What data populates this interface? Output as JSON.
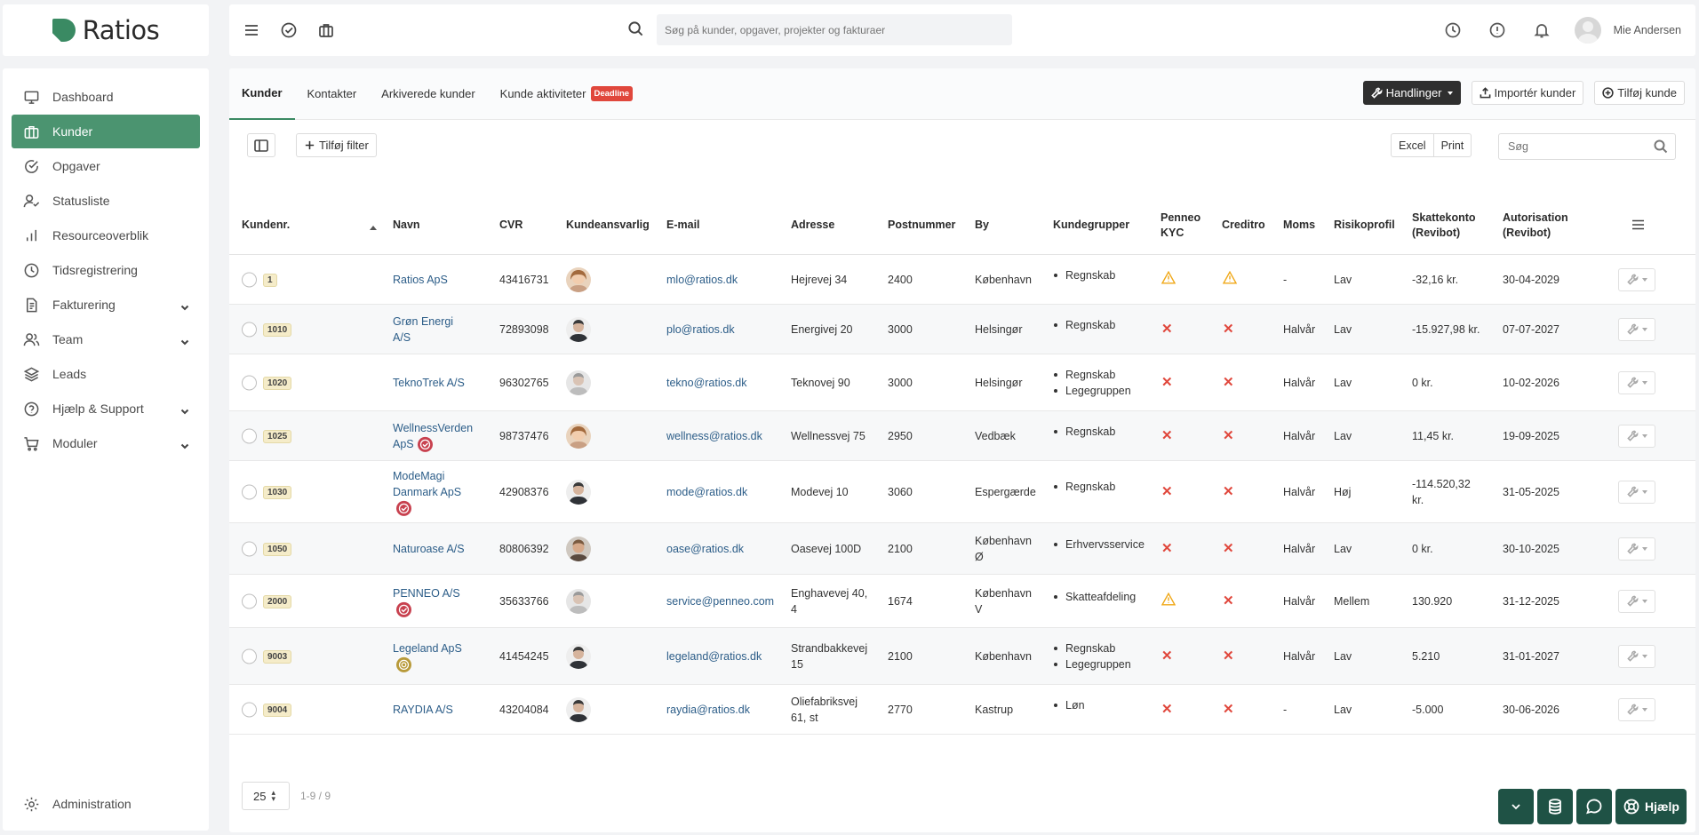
{
  "app": {
    "name": "Ratios"
  },
  "topbar": {
    "search_placeholder": "Søg på kunder, opgaver, projekter og fakturaer",
    "user_name": "Mie Andersen"
  },
  "sidebar": {
    "items": [
      {
        "label": "Dashboard",
        "icon": "monitor-icon"
      },
      {
        "label": "Kunder",
        "icon": "briefcase-icon",
        "active": true
      },
      {
        "label": "Opgaver",
        "icon": "check-circle-icon"
      },
      {
        "label": "Statusliste",
        "icon": "user-check-icon"
      },
      {
        "label": "Resourceoverblik",
        "icon": "bar-chart-icon"
      },
      {
        "label": "Tidsregistrering",
        "icon": "clock-icon"
      },
      {
        "label": "Fakturering",
        "icon": "invoice-icon",
        "expandable": true
      },
      {
        "label": "Team",
        "icon": "users-icon",
        "expandable": true
      },
      {
        "label": "Leads",
        "icon": "layers-icon"
      },
      {
        "label": "Hjælp & Support",
        "icon": "help-circle-icon",
        "expandable": true
      },
      {
        "label": "Moduler",
        "icon": "cart-icon",
        "expandable": true
      }
    ],
    "admin_label": "Administration"
  },
  "tabs": {
    "items": [
      "Kunder",
      "Kontakter",
      "Arkiverede kunder",
      "Kunde aktiviteter"
    ],
    "deadline_badge": "Deadline",
    "actions": {
      "handlinger": "Handlinger",
      "import": "Importér kunder",
      "add": "Tilføj kunde"
    }
  },
  "toolbar": {
    "add_filter": "Tilføj filter",
    "excel": "Excel",
    "print": "Print",
    "search_placeholder": "Søg"
  },
  "table": {
    "headers": {
      "kundenr": "Kundenr.",
      "navn": "Navn",
      "cvr": "CVR",
      "ansvarlig": "Kundeansvarlig",
      "email": "E-mail",
      "adresse": "Adresse",
      "postnummer": "Postnummer",
      "by": "By",
      "grupper": "Kundegrupper",
      "penneo_1": "Penneo",
      "penneo_2": "KYC",
      "creditro": "Creditro",
      "moms": "Moms",
      "risiko": "Risikoprofil",
      "skat_1": "Skattekonto",
      "skat_2": "(Revibot)",
      "auth_1": "Autorisation",
      "auth_2": "(Revibot)"
    },
    "rows": [
      {
        "nr": "1",
        "name": "Ratios ApS",
        "cvr": "43416731",
        "email": "mlo@ratios.dk",
        "address": "Hejrevej 34",
        "zip": "2400",
        "city": "København",
        "groups": [
          "Regnskab"
        ],
        "penneo": "warning",
        "creditro": "warning",
        "moms": "-",
        "risk": "Lav",
        "tax": "-32,16 kr.",
        "auth": "30-04-2029"
      },
      {
        "nr": "1010",
        "name": "Grøn Energi A/S",
        "cvr": "72893098",
        "email": "plo@ratios.dk",
        "address": "Energivej 20",
        "zip": "3000",
        "city": "Helsingør",
        "groups": [
          "Regnskab"
        ],
        "penneo": "x",
        "creditro": "x",
        "moms": "Halvår",
        "risk": "Lav",
        "tax": "-15.927,98 kr.",
        "auth": "07-07-2027"
      },
      {
        "nr": "1020",
        "name": "TeknoTrek A/S",
        "cvr": "96302765",
        "email": "tekno@ratios.dk",
        "address": "Teknovej 90",
        "zip": "3000",
        "city": "Helsingør",
        "groups": [
          "Regnskab",
          "Legegruppen"
        ],
        "penneo": "x",
        "creditro": "x",
        "moms": "Halvår",
        "risk": "Lav",
        "tax": "0 kr.",
        "auth": "10-02-2026"
      },
      {
        "nr": "1025",
        "name": "WellnessVerden ApS",
        "cvr": "98737476",
        "email": "wellness@ratios.dk",
        "address": "Wellnessvej 75",
        "zip": "2950",
        "city": "Vedbæk",
        "groups": [
          "Regnskab"
        ],
        "penneo": "x",
        "creditro": "x",
        "moms": "Halvår",
        "risk": "Lav",
        "tax": "11,45 kr.",
        "auth": "19-09-2025"
      },
      {
        "nr": "1030",
        "name": "ModeMagi Danmark ApS",
        "cvr": "42908376",
        "email": "mode@ratios.dk",
        "address": "Modevej 10",
        "zip": "3060",
        "city": "Espergærde",
        "groups": [
          "Regnskab"
        ],
        "penneo": "x",
        "creditro": "x",
        "moms": "Halvår",
        "risk": "Høj",
        "tax": "-114.520,32 kr.",
        "auth": "31-05-2025"
      },
      {
        "nr": "1050",
        "name": "Naturoase A/S",
        "cvr": "80806392",
        "email": "oase@ratios.dk",
        "address": "Oasevej 100D",
        "zip": "2100",
        "city": "København Ø",
        "groups": [
          "Erhvervsservice"
        ],
        "penneo": "x",
        "creditro": "x",
        "moms": "Halvår",
        "risk": "Lav",
        "tax": "0 kr.",
        "auth": "30-10-2025"
      },
      {
        "nr": "2000",
        "name": "PENNEO A/S",
        "cvr": "35633766",
        "email": "service@penneo.com",
        "address": "Enghavevej 40, 4",
        "zip": "1674",
        "city": "København V",
        "groups": [
          "Skatteafdeling"
        ],
        "penneo": "warning",
        "creditro": "x",
        "moms": "Halvår",
        "risk": "Mellem",
        "tax": "130.920",
        "auth": "31-12-2025"
      },
      {
        "nr": "9003",
        "name": "Legeland ApS",
        "cvr": "41454245",
        "email": "legeland@ratios.dk",
        "address": "Strandbakkevej 15",
        "zip": "2100",
        "city": "København",
        "groups": [
          "Regnskab",
          "Legegruppen"
        ],
        "penneo": "x",
        "creditro": "x",
        "moms": "Halvår",
        "risk": "Lav",
        "tax": "5.210",
        "auth": "31-01-2027"
      },
      {
        "nr": "9004",
        "name": "RAYDIA A/S",
        "cvr": "43204084",
        "email": "raydia@ratios.dk",
        "address": "Oliefabriksvej 61, st",
        "zip": "2770",
        "city": "Kastrup",
        "groups": [
          "Løn"
        ],
        "penneo": "x",
        "creditro": "x",
        "moms": "-",
        "risk": "Lav",
        "tax": "-5.000",
        "auth": "30-06-2026"
      }
    ]
  },
  "pager": {
    "page_size": "25",
    "range": "1-9 / 9"
  },
  "help": {
    "label": "Hjælp"
  },
  "colors": {
    "accent": "#4b9470",
    "danger": "#e0473c",
    "warning": "#f0a818",
    "link": "#2c5d88",
    "dock": "#1f5245"
  }
}
